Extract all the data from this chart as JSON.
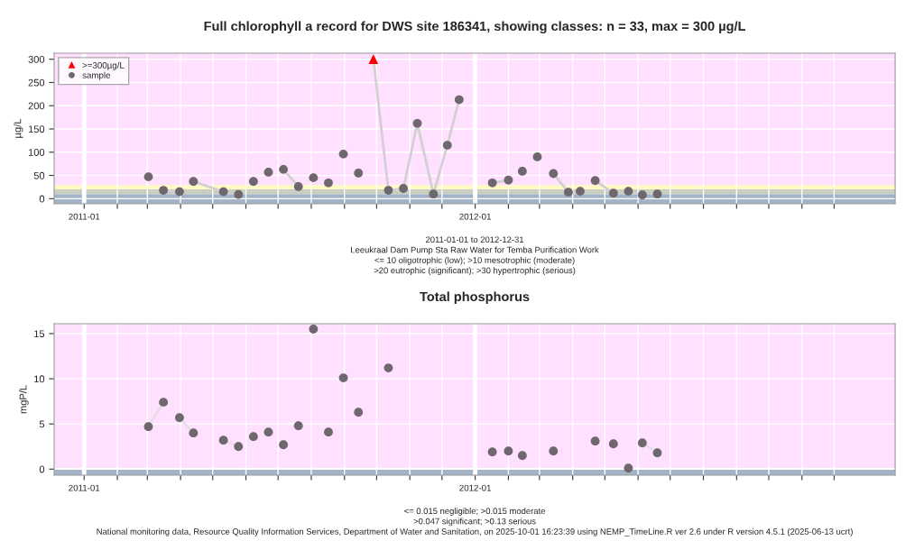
{
  "chart_data": [
    {
      "type": "scatter",
      "title": "Full chlorophyll a record for DWS site 186341, showing classes: n = 33, max = 300 µg/L",
      "ylabel": "µg/L",
      "annotations": [
        "2011-01-01 to 2012-12-31",
        "Leeukraal Dam Pump Sta Raw Water for Temba Purification Work",
        "<= 10 oligotrophic (low); >10 mesotrophic (moderate)",
        ">20 eutrophic (significant); >30 hypertrophic (serious)"
      ],
      "x": [
        "2011-03-02",
        "2011-03-16",
        "2011-03-31",
        "2011-04-13",
        "2011-05-11",
        "2011-05-25",
        "2011-06-08",
        "2011-06-22",
        "2011-07-06",
        "2011-07-20",
        "2011-08-03",
        "2011-08-17",
        "2011-08-31",
        "2011-09-14",
        "2011-09-28",
        "2011-10-12",
        "2011-10-26",
        "2011-11-08",
        "2011-11-23",
        "2011-12-06",
        "2011-12-17",
        "2012-01-17",
        "2012-02-01",
        "2012-02-14",
        "2012-02-28",
        "2012-03-14",
        "2012-03-28",
        "2012-04-08",
        "2012-04-22",
        "2012-05-09",
        "2012-05-23",
        "2012-06-05",
        "2012-06-19"
      ],
      "series": [
        {
          "type": "line",
          "color": "#d3d0d3",
          "x": [
            "2011-03-16",
            "2011-03-31",
            "2011-04-06",
            "2011-04-13",
            "2011-05-11",
            "2011-06-15",
            "2011-07-06",
            "2011-07-20",
            "2011-08-24",
            "2011-09-28",
            "2011-10-12",
            "2011-10-26",
            "2011-11-08",
            "2011-11-23",
            "2011-12-06",
            "2011-12-17",
            "2012-01-01",
            "2012-01-17",
            "2012-02-01",
            "2012-02-21",
            "2012-03-14",
            "2012-03-28",
            "2012-04-15",
            "2012-04-22",
            "2012-05-09"
          ],
          "values": [
            18,
            15,
            null,
            37,
            15,
            null,
            63,
            26,
            null,
            300,
            18,
            22,
            162,
            10,
            115,
            213,
            null,
            34,
            40,
            null,
            54,
            14,
            null,
            39,
            12
          ]
        },
        {
          "name": ">=300µg/L",
          "color": "#ff0000",
          "marker": "triangle",
          "x": [
            "2011-09-28"
          ],
          "values": [
            300
          ]
        },
        {
          "name": "sample",
          "color": "#6e686e",
          "marker": "circle",
          "values": [
            47,
            18,
            15,
            37,
            15,
            9,
            37,
            57,
            63,
            26,
            45,
            34,
            96,
            55,
            null,
            18,
            22,
            162,
            10,
            115,
            213,
            34,
            40,
            59,
            90,
            54,
            14,
            16,
            39,
            12,
            16,
            8,
            10
          ]
        }
      ],
      "xlim": [
        "2010-12-04",
        "2013-01-27"
      ],
      "ylim": [
        -11,
        313
      ],
      "yticks": [
        0,
        50,
        100,
        150,
        200,
        250,
        300
      ],
      "xticks": [
        "2011-01",
        {
          "value": "2011-02",
          "label": null
        },
        {
          "value": "2011-03",
          "label": null
        },
        {
          "value": "2011-04",
          "label": null
        },
        {
          "value": "2011-05",
          "label": null
        },
        {
          "value": "2011-06",
          "label": null
        },
        {
          "value": "2011-07",
          "label": null
        },
        {
          "value": "2011-08",
          "label": null
        },
        {
          "value": "2011-09",
          "label": null
        },
        {
          "value": "2011-10",
          "label": null
        },
        {
          "value": "2011-11",
          "label": null
        },
        {
          "value": "2011-12",
          "label": null
        },
        "2012-01",
        {
          "value": "2012-02",
          "label": null
        },
        {
          "value": "2012-03",
          "label": null
        },
        {
          "value": "2012-04",
          "label": null
        },
        {
          "value": "2012-05",
          "label": null
        },
        {
          "value": "2012-06",
          "label": null
        },
        {
          "value": "2012-07",
          "label": null
        },
        {
          "value": "2012-08",
          "label": null
        },
        {
          "value": "2012-09",
          "label": null
        },
        {
          "value": "2012-10",
          "label": null
        },
        {
          "value": "2012-11",
          "label": null
        },
        {
          "value": "2012-12",
          "label": null
        }
      ],
      "bands": [
        {
          "axis": "y",
          "from": -11,
          "to": 10,
          "color": "#a4b4c8"
        },
        {
          "axis": "y",
          "from": 10,
          "to": 20,
          "color": "#c8cfc0"
        },
        {
          "axis": "y",
          "from": 20,
          "to": 30,
          "color": "#fff9c8"
        },
        {
          "axis": "y",
          "from": 30,
          "to": 313,
          "color": "#ffe0ff"
        }
      ],
      "grid": true,
      "legend": "top left"
    },
    {
      "type": "scatter",
      "title": "Total phosphorus",
      "ylabel": "mgP/L",
      "annotations": [
        "<= 0.015 negligible; >0.015 moderate",
        ">0.047 significant; >0.13 serious",
        "National monitoring data, Resource Quality Information Services, Department of Water and Sanitation, on 2025-10-01 16:23:39 using NEMP_TimeLine.R ver 2.6 under R version 4.5.1 (2025-06-13 ucrt)"
      ],
      "x": [
        "2011-03-02",
        "2011-03-16",
        "2011-03-31",
        "2011-04-13",
        "2011-05-11",
        "2011-05-25",
        "2011-06-08",
        "2011-06-22",
        "2011-07-06",
        "2011-07-20",
        "2011-08-03",
        "2011-08-17",
        "2011-08-31",
        "2011-09-14",
        "2011-10-12",
        "2012-01-17",
        "2012-02-01",
        "2012-02-14",
        "2012-03-14",
        "2012-04-22",
        "2012-05-09",
        "2012-05-23",
        "2012-06-05",
        "2012-06-19"
      ],
      "series": [
        {
          "type": "line",
          "color": "#e4e0e4",
          "x": [
            "2011-03-02",
            "2011-03-16",
            "2011-03-23",
            "2011-03-31",
            "2011-04-13",
            "2011-04-27",
            "2011-05-11",
            "2011-05-25",
            "2011-12-01",
            "2012-06-05",
            "2012-06-19"
          ],
          "values": [
            4.7,
            7.4,
            null,
            5.7,
            4.0,
            null,
            3.2,
            2.5,
            null,
            2.9,
            1.8
          ]
        },
        {
          "color": "#6e686e",
          "marker": "circle",
          "values": [
            4.7,
            7.4,
            5.7,
            4.0,
            3.2,
            2.5,
            3.6,
            4.1,
            2.7,
            4.8,
            15.5,
            4.1,
            10.1,
            6.3,
            11.2,
            1.9,
            2.0,
            1.5,
            2.0,
            3.1,
            2.8,
            0.1,
            2.9,
            1.8
          ]
        }
      ],
      "xlim": [
        "2010-12-04",
        "2013-01-27"
      ],
      "ylim": [
        -0.67,
        16.1
      ],
      "yticks": [
        0,
        5,
        10,
        15
      ],
      "xticks": [
        "2011-01",
        {
          "value": "2011-02",
          "label": null
        },
        {
          "value": "2011-03",
          "label": null
        },
        {
          "value": "2011-04",
          "label": null
        },
        {
          "value": "2011-05",
          "label": null
        },
        {
          "value": "2011-06",
          "label": null
        },
        {
          "value": "2011-07",
          "label": null
        },
        {
          "value": "2011-08",
          "label": null
        },
        {
          "value": "2011-09",
          "label": null
        },
        {
          "value": "2011-10",
          "label": null
        },
        {
          "value": "2011-11",
          "label": null
        },
        {
          "value": "2011-12",
          "label": null
        },
        "2012-01",
        {
          "value": "2012-02",
          "label": null
        },
        {
          "value": "2012-03",
          "label": null
        },
        {
          "value": "2012-04",
          "label": null
        },
        {
          "value": "2012-05",
          "label": null
        },
        {
          "value": "2012-06",
          "label": null
        },
        {
          "value": "2012-07",
          "label": null
        },
        {
          "value": "2012-08",
          "label": null
        },
        {
          "value": "2012-09",
          "label": null
        },
        {
          "value": "2012-10",
          "label": null
        },
        {
          "value": "2012-11",
          "label": null
        },
        {
          "value": "2012-12",
          "label": null
        }
      ],
      "bands": [
        {
          "axis": "y",
          "from": -0.67,
          "to": 0.015,
          "color": "#a4b4c8"
        },
        {
          "axis": "y",
          "from": 0.13,
          "to": 16.1,
          "color": "#ffe0ff"
        }
      ],
      "grid": true
    }
  ]
}
